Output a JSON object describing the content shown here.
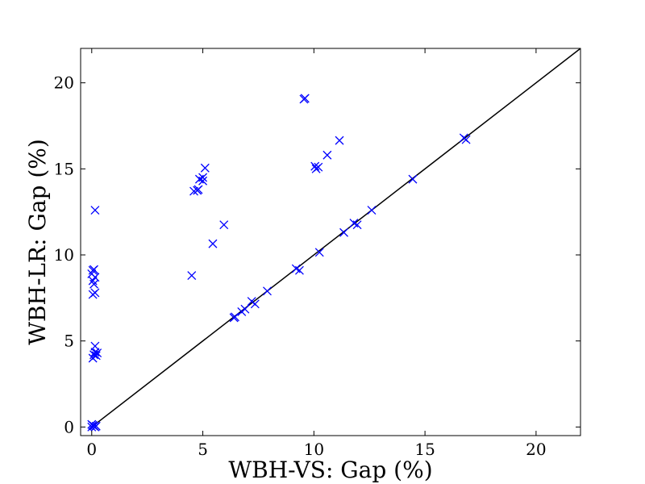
{
  "chart_data": {
    "type": "scatter",
    "title": "",
    "xlabel": "WBH-VS: Gap (%)",
    "ylabel": "WBH-LR: Gap (%)",
    "xlim": [
      -0.5,
      22
    ],
    "ylim": [
      -0.5,
      22
    ],
    "xticks": [
      0,
      5,
      10,
      15,
      20
    ],
    "yticks": [
      0,
      5,
      10,
      15,
      20
    ],
    "grid": false,
    "marker": "x",
    "marker_color": "#0000ff",
    "reference_line": {
      "from": [
        0,
        0
      ],
      "to": [
        22,
        22
      ],
      "color": "#000000"
    },
    "series": [
      {
        "points": [
          [
            0.0,
            0.0
          ],
          [
            0.05,
            0.1
          ],
          [
            0.1,
            0.05
          ],
          [
            0.15,
            0.0
          ],
          [
            0.2,
            0.05
          ],
          [
            0.0,
            0.15
          ],
          [
            0.05,
            4.0
          ],
          [
            0.1,
            4.2
          ],
          [
            0.15,
            4.35
          ],
          [
            0.2,
            4.15
          ],
          [
            0.25,
            4.3
          ],
          [
            0.15,
            4.7
          ],
          [
            0.05,
            7.7
          ],
          [
            0.15,
            7.8
          ],
          [
            0.1,
            8.3
          ],
          [
            0.05,
            8.5
          ],
          [
            0.15,
            8.7
          ],
          [
            0.0,
            8.9
          ],
          [
            0.05,
            9.1
          ],
          [
            0.1,
            9.15
          ],
          [
            0.15,
            12.6
          ],
          [
            4.5,
            8.8
          ],
          [
            4.6,
            13.7
          ],
          [
            4.75,
            13.75
          ],
          [
            4.8,
            13.8
          ],
          [
            4.85,
            14.4
          ],
          [
            5.0,
            14.3
          ],
          [
            5.0,
            14.5
          ],
          [
            5.1,
            15.05
          ],
          [
            5.45,
            10.65
          ],
          [
            5.95,
            11.75
          ],
          [
            6.4,
            6.35
          ],
          [
            6.45,
            6.4
          ],
          [
            6.75,
            6.7
          ],
          [
            6.9,
            6.85
          ],
          [
            7.2,
            7.3
          ],
          [
            7.35,
            7.15
          ],
          [
            7.9,
            7.9
          ],
          [
            9.2,
            9.2
          ],
          [
            9.35,
            9.1
          ],
          [
            9.55,
            19.05
          ],
          [
            9.6,
            19.1
          ],
          [
            10.05,
            15.15
          ],
          [
            10.1,
            15.0
          ],
          [
            10.2,
            15.1
          ],
          [
            10.25,
            10.15
          ],
          [
            10.6,
            15.8
          ],
          [
            11.15,
            16.65
          ],
          [
            11.35,
            11.3
          ],
          [
            11.8,
            11.85
          ],
          [
            11.95,
            11.75
          ],
          [
            12.6,
            12.6
          ],
          [
            14.45,
            14.4
          ],
          [
            16.75,
            16.8
          ],
          [
            16.85,
            16.7
          ]
        ]
      }
    ]
  }
}
